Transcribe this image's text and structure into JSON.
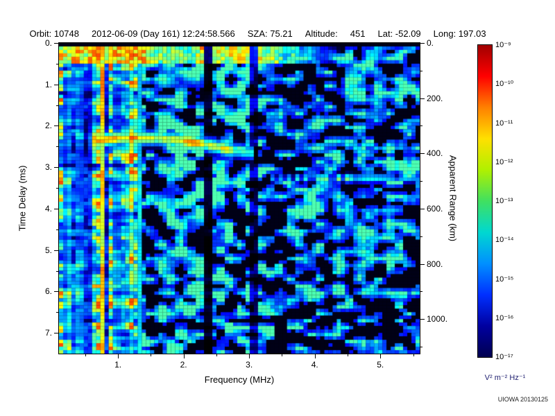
{
  "header": {
    "segments": [
      "Orbit: 10748",
      "2012-06-09 (Day 161) 12:24:58.566",
      "SZA: 75.21",
      "Altitude:     451",
      "Lat: -52.09",
      "Long: 197.03"
    ]
  },
  "axes": {
    "bottom": {
      "label": "Frequency (MHz)",
      "ticks": [
        "1.",
        "2.",
        "3.",
        "4.",
        "5."
      ],
      "tick_values": [
        1,
        2,
        3,
        4,
        5
      ],
      "range": [
        0.1,
        5.6
      ]
    },
    "left": {
      "label": "Time Delay (ms)",
      "ticks": [
        "0.",
        "1.",
        "2.",
        "3.",
        "4.",
        "5.",
        "6.",
        "7."
      ],
      "tick_values": [
        0,
        1,
        2,
        3,
        4,
        5,
        6,
        7
      ],
      "range": [
        0,
        7.5
      ]
    },
    "right": {
      "label": "Apparent Range (km)",
      "ticks": [
        "0.",
        "200.",
        "400.",
        "600.",
        "800.",
        "1000."
      ],
      "tick_values": [
        0,
        200,
        400,
        600,
        800,
        1000
      ],
      "range": [
        0,
        1125
      ]
    }
  },
  "colorbar": {
    "tick_labels": [
      "10⁻⁹",
      "10⁻¹⁰",
      "10⁻¹¹",
      "10⁻¹²",
      "10⁻¹³",
      "10⁻¹⁴",
      "10⁻¹⁵",
      "10⁻¹⁶",
      "10⁻¹⁷"
    ],
    "units": "V² m⁻² Hz⁻¹",
    "units_color": "#202070",
    "scale": "log",
    "min": "1e-17",
    "max": "1e-9",
    "gradient": [
      "#a00000",
      "#ff0000",
      "#ff8000",
      "#ffe000",
      "#b0f000",
      "#40e060",
      "#00d8d0",
      "#0090ff",
      "#0030ff",
      "#0000a0",
      "#000050"
    ]
  },
  "watermark": "UIOWA 20130125",
  "chart_data": {
    "type": "heatmap",
    "title": "MARSIS-style radar ionogram spectrogram",
    "xlabel": "Frequency (MHz)",
    "ylabel_left": "Time Delay (ms)",
    "ylabel_right": "Apparent Range (km)",
    "xlim": [
      0.1,
      5.6
    ],
    "ylim_ms": [
      0,
      7.5
    ],
    "value_units": "V² m⁻² Hz⁻¹",
    "value_range": [
      "1e-17",
      "1e-9"
    ],
    "colormap": "jet",
    "background": "#000000",
    "features": [
      {
        "name": "broadband-noise-low-frequency",
        "type": "noisy-region",
        "f_range": [
          0.1,
          1.38
        ],
        "intensity_range": [
          0.05,
          0.8
        ]
      },
      {
        "name": "electron-plasma-harmonic-line",
        "type": "vertical-line",
        "f": 0.75,
        "intensity": 0.62
      },
      {
        "name": "secondary-vertical-line",
        "type": "vertical-line",
        "f": 1.32,
        "intensity": 0.33
      },
      {
        "name": "local-plasma-band",
        "type": "horizontal-band",
        "t_range": [
          0.1,
          0.48
        ],
        "f_full": 3.15,
        "f_end": 4.5,
        "intensity": 0.56
      },
      {
        "name": "ionospheric-echo-trace",
        "type": "trace",
        "points_f_t": [
          [
            0.62,
            2.38
          ],
          [
            1.0,
            2.3
          ],
          [
            1.5,
            2.3
          ],
          [
            1.9,
            2.34
          ],
          [
            2.3,
            2.44
          ],
          [
            2.7,
            2.58
          ],
          [
            3.1,
            2.66
          ]
        ],
        "intensity": 0.62
      },
      {
        "name": "surface-echo-line",
        "type": "horizontal-line",
        "t": 3.27,
        "f_range": [
          3.35,
          5.6
        ],
        "bright_f_range": [
          3.7,
          4.6
        ],
        "intensity": 0.4
      },
      {
        "name": "attenuation-gap",
        "type": "dark-column",
        "f_range": [
          2.3,
          2.45
        ]
      },
      {
        "name": "attenuation-gap-2",
        "type": "dark-column",
        "f_range": [
          3.0,
          3.12
        ]
      }
    ]
  }
}
